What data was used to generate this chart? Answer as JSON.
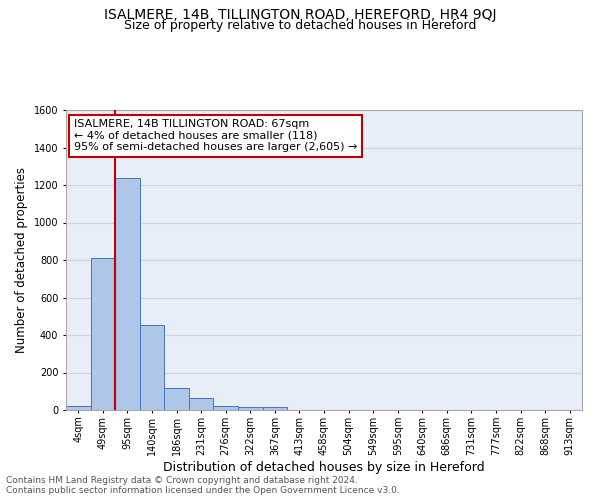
{
  "title": "ISALMERE, 14B, TILLINGTON ROAD, HEREFORD, HR4 9QJ",
  "subtitle": "Size of property relative to detached houses in Hereford",
  "xlabel": "Distribution of detached houses by size in Hereford",
  "ylabel": "Number of detached properties",
  "categories": [
    "4sqm",
    "49sqm",
    "95sqm",
    "140sqm",
    "186sqm",
    "231sqm",
    "276sqm",
    "322sqm",
    "367sqm",
    "413sqm",
    "458sqm",
    "504sqm",
    "549sqm",
    "595sqm",
    "640sqm",
    "686sqm",
    "731sqm",
    "777sqm",
    "822sqm",
    "868sqm",
    "913sqm"
  ],
  "values": [
    22,
    810,
    1235,
    455,
    120,
    62,
    20,
    17,
    15,
    0,
    0,
    0,
    0,
    0,
    0,
    0,
    0,
    0,
    0,
    0,
    0
  ],
  "bar_color": "#aec6e8",
  "bar_edge_color": "#4472c4",
  "property_line_x": 1.5,
  "property_line_color": "#c00000",
  "annotation_text": "ISALMERE, 14B TILLINGTON ROAD: 67sqm\n← 4% of detached houses are smaller (118)\n95% of semi-detached houses are larger (2,605) →",
  "annotation_box_color": "#ffffff",
  "annotation_box_edge_color": "#c00000",
  "ylim": [
    0,
    1600
  ],
  "yticks": [
    0,
    200,
    400,
    600,
    800,
    1000,
    1200,
    1400,
    1600
  ],
  "grid_color": "#c8d4e8",
  "background_color": "#e8eef8",
  "footer_text": "Contains HM Land Registry data © Crown copyright and database right 2024.\nContains public sector information licensed under the Open Government Licence v3.0.",
  "title_fontsize": 10,
  "subtitle_fontsize": 9,
  "xlabel_fontsize": 9,
  "ylabel_fontsize": 8.5,
  "tick_fontsize": 7,
  "footer_fontsize": 6.5,
  "annotation_fontsize": 8
}
